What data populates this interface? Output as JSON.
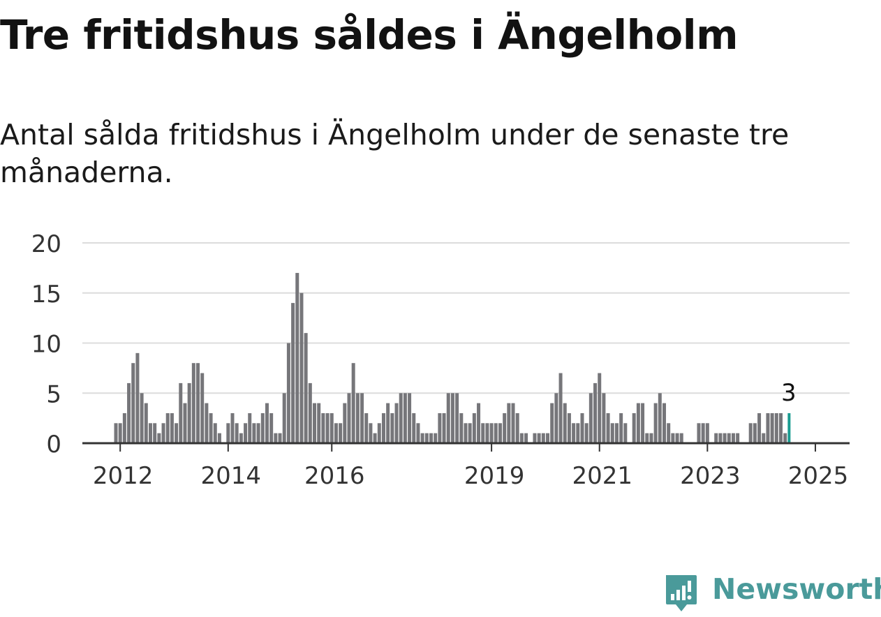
{
  "title": "Tre fritidshus såldes i Ängelholm",
  "subtitle": "Antal sålda fritidshus i Ängelholm under de senaste tre månaderna.",
  "brand": "Newsworthy",
  "colors": {
    "bar": "#76767a",
    "highlight": "#1a9c91",
    "grid": "#dcdcdc",
    "axis": "#333333",
    "brand": "#4a9a9a"
  },
  "chart_data": {
    "type": "bar",
    "ylim": [
      0,
      20
    ],
    "yticks": [
      0,
      5,
      10,
      15,
      20
    ],
    "grid": true,
    "x_start": "2011-12",
    "xtick_labels": [
      {
        "label": "2012",
        "index": 1
      },
      {
        "label": "2014",
        "index": 26
      },
      {
        "label": "2016",
        "index": 50
      },
      {
        "label": "2019",
        "index": 87
      },
      {
        "label": "2021",
        "index": 112
      },
      {
        "label": "2023",
        "index": 137
      },
      {
        "label": "2025",
        "index": 162
      }
    ],
    "values": [
      2,
      2,
      3,
      6,
      8,
      9,
      5,
      4,
      2,
      2,
      1,
      2,
      3,
      3,
      2,
      6,
      4,
      6,
      8,
      8,
      7,
      4,
      3,
      2,
      1,
      0,
      2,
      3,
      2,
      1,
      2,
      3,
      2,
      2,
      3,
      4,
      3,
      1,
      1,
      5,
      10,
      14,
      17,
      15,
      11,
      6,
      4,
      4,
      3,
      3,
      3,
      2,
      2,
      4,
      5,
      8,
      5,
      5,
      3,
      2,
      1,
      2,
      3,
      4,
      3,
      4,
      5,
      5,
      5,
      3,
      2,
      1,
      1,
      1,
      1,
      3,
      3,
      5,
      5,
      5,
      3,
      2,
      2,
      3,
      4,
      2,
      2,
      2,
      2,
      2,
      3,
      4,
      4,
      3,
      1,
      1,
      0,
      1,
      1,
      1,
      1,
      4,
      5,
      7,
      4,
      3,
      2,
      2,
      3,
      2,
      5,
      6,
      7,
      5,
      3,
      2,
      2,
      3,
      2,
      0,
      3,
      4,
      4,
      1,
      1,
      4,
      5,
      4,
      2,
      1,
      1,
      1,
      0,
      0,
      0,
      2,
      2,
      2,
      0,
      1,
      1,
      1,
      1,
      1,
      1,
      0,
      0,
      2,
      2,
      3,
      1,
      3,
      3,
      3,
      3,
      1,
      3
    ],
    "highlight_label": "3"
  }
}
